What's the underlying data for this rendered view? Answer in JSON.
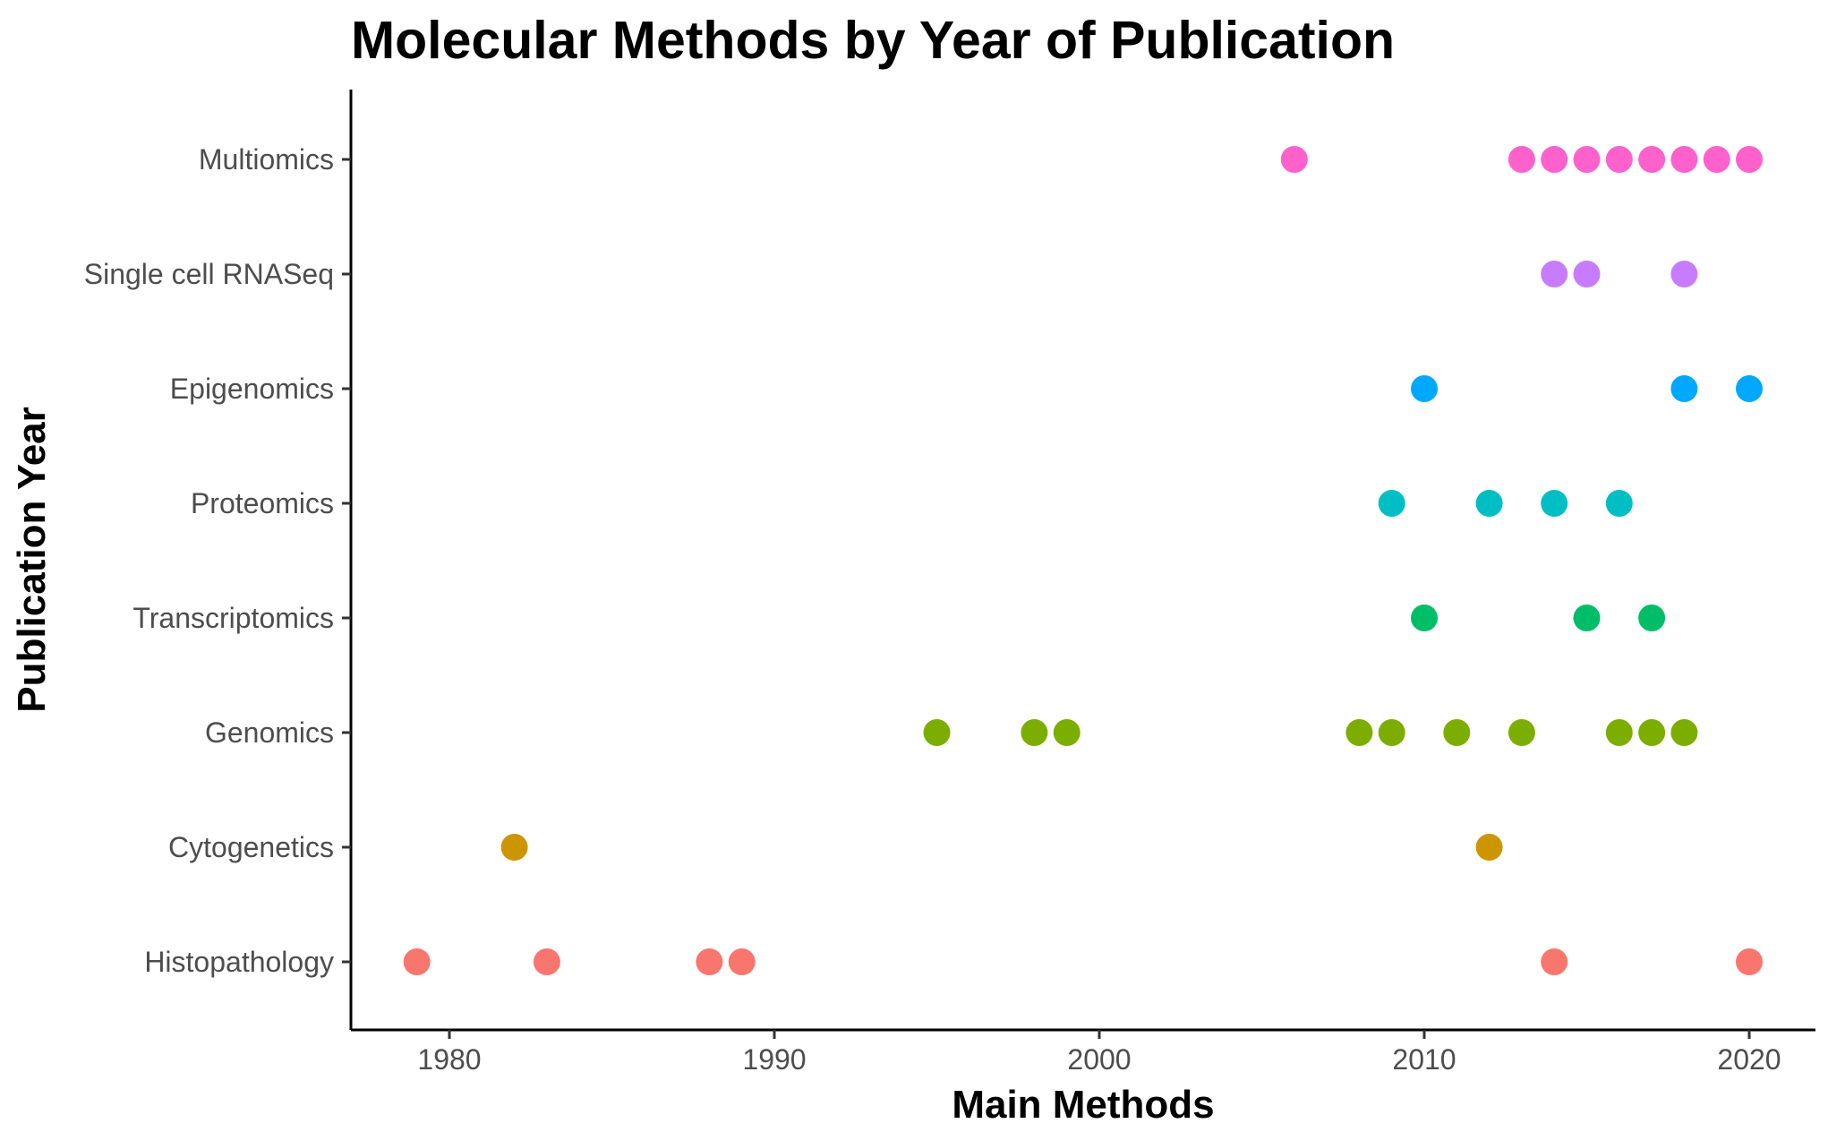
{
  "chart_data": {
    "type": "scatter",
    "title": "Molecular Methods by Year of Publication",
    "xlabel": "Main Methods",
    "ylabel": "Publication Year",
    "xlim": [
      1977,
      2022
    ],
    "x_ticks": [
      1980,
      1990,
      2000,
      2010,
      2020
    ],
    "categories": [
      "Histopathology",
      "Cytogenetics",
      "Genomics",
      "Transcriptomics",
      "Proteomics",
      "Epigenomics",
      "Single cell RNASeq",
      "Multiomics"
    ],
    "grid": false,
    "legend": "none",
    "series": [
      {
        "category": "Histopathology",
        "color": "#F8766D",
        "x": [
          1979,
          1983,
          1988,
          1989,
          2014,
          2020
        ]
      },
      {
        "category": "Cytogenetics",
        "color": "#CD9600",
        "x": [
          1982,
          2012
        ]
      },
      {
        "category": "Genomics",
        "color": "#7CAE00",
        "x": [
          1995,
          1998,
          1999,
          2008,
          2009,
          2011,
          2013,
          2016,
          2017,
          2018
        ]
      },
      {
        "category": "Transcriptomics",
        "color": "#00BE67",
        "x": [
          2010,
          2015,
          2017
        ]
      },
      {
        "category": "Proteomics",
        "color": "#00BFC4",
        "x": [
          2009,
          2012,
          2014,
          2016
        ]
      },
      {
        "category": "Epigenomics",
        "color": "#00A9FF",
        "x": [
          2010,
          2018,
          2020
        ]
      },
      {
        "category": "Single cell RNASeq",
        "color": "#C77CFF",
        "x": [
          2014,
          2015,
          2018
        ]
      },
      {
        "category": "Multiomics",
        "color": "#FF61CC",
        "x": [
          2006,
          2013,
          2014,
          2015,
          2016,
          2017,
          2018,
          2019,
          2020
        ]
      }
    ]
  }
}
